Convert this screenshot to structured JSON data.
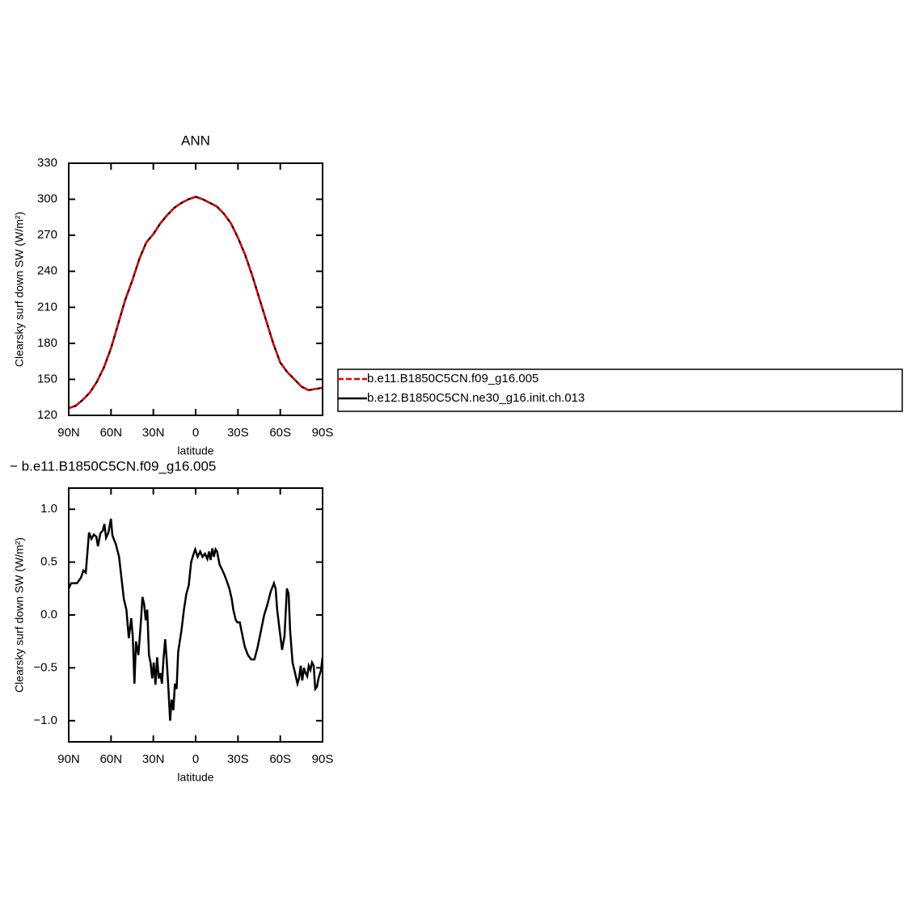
{
  "chart_data": [
    {
      "type": "line",
      "title": "ANN",
      "xlabel": "latitude",
      "ylabel": "Clearsky surf down SW (W/m²)",
      "x": [
        90,
        85,
        80,
        75,
        70,
        65,
        60,
        55,
        50,
        45,
        40,
        35,
        30,
        25,
        20,
        15,
        10,
        5,
        0,
        -5,
        -10,
        -15,
        -20,
        -25,
        -30,
        -35,
        -40,
        -45,
        -50,
        -55,
        -60,
        -65,
        -70,
        -75,
        -80,
        -85,
        -90
      ],
      "series": [
        {
          "name": "b.e12.B1850C5CN.ne30_g16.init.ch.013",
          "color": "#000000",
          "dash": false,
          "values": [
            126,
            128,
            133,
            139,
            148,
            160,
            176,
            196,
            216,
            232,
            250,
            264,
            271,
            280,
            287,
            293,
            297,
            300,
            302,
            300,
            297,
            294,
            288,
            280,
            268,
            254,
            237,
            218,
            199,
            180,
            164,
            156,
            150,
            144,
            141,
            142,
            143
          ]
        },
        {
          "name": "b.e11.B1850C5CN.f09_g16.005",
          "color": "#e00000",
          "dash": true,
          "values": [
            126,
            128,
            133,
            139,
            148,
            160,
            176,
            196,
            216,
            232,
            250,
            264,
            271,
            280,
            287,
            293,
            297,
            300,
            302,
            300,
            297,
            294,
            288,
            280,
            268,
            254,
            237,
            218,
            199,
            180,
            164,
            156,
            150,
            144,
            141,
            142,
            143
          ]
        }
      ],
      "xlim": [
        90,
        -90
      ],
      "xticks": [
        {
          "value": 90,
          "label": "90N"
        },
        {
          "value": 60,
          "label": "60N"
        },
        {
          "value": 30,
          "label": "30N"
        },
        0,
        {
          "value": -30,
          "label": "30S"
        },
        {
          "value": -60,
          "label": "60S"
        },
        {
          "value": -90,
          "label": "90S"
        }
      ],
      "ylim": [
        120,
        330
      ],
      "yticks": [
        120,
        150,
        180,
        210,
        240,
        270,
        300,
        330
      ],
      "legend_position": "right"
    },
    {
      "type": "line",
      "title": "−  b.e11.B1850C5CN.f09_g16.005",
      "xlabel": "latitude",
      "ylabel": "Clearsky surf down SW (W/m²)",
      "color": "#000000",
      "x": [
        90,
        88.3,
        84.2,
        81.4,
        79.6,
        77.9,
        75.6,
        73.9,
        72.2,
        70.4,
        69.3,
        67.6,
        65.8,
        64.7,
        63.5,
        61.8,
        60.1,
        59,
        56.6,
        54.3,
        52.6,
        50.9,
        49.1,
        47.4,
        45.7,
        44.6,
        43.4,
        42.3,
        40.6,
        38.9,
        37.7,
        36.5,
        35.4,
        34.3,
        33.1,
        32,
        30.8,
        29.7,
        28.5,
        27.3,
        26.2,
        25,
        23.9,
        22.7,
        21.6,
        20.4,
        19.3,
        18.1,
        17,
        15.8,
        14.7,
        13.5,
        12.4,
        10.1,
        8.3,
        6.6,
        4.9,
        3.2,
        1.4,
        0.3,
        -1.4,
        -3.2,
        -4.9,
        -6.6,
        -8.3,
        -9.5,
        -10.6,
        -11.8,
        -12.9,
        -14.1,
        -15.2,
        -16.9,
        -18.7,
        -20.4,
        -22.1,
        -23.9,
        -25.6,
        -26.7,
        -28.5,
        -29.6,
        -31.3,
        -32.5,
        -34.8,
        -37.1,
        -39.4,
        -41.7,
        -44,
        -46.3,
        -48.6,
        -50.9,
        -53.2,
        -55.5,
        -56.7,
        -57.8,
        -59.6,
        -61.3,
        -63,
        -64.7,
        -65.9,
        -67,
        -68.7,
        -70.5,
        -72.2,
        -73.3,
        -74.5,
        -75.6,
        -76.8,
        -77.9,
        -79.1,
        -80.2,
        -81.4,
        -82.5,
        -83.7,
        -84.8,
        -86,
        -87.1,
        -88.9,
        -90
      ],
      "values": [
        0.25,
        0.3,
        0.3,
        0.35,
        0.42,
        0.4,
        0.78,
        0.72,
        0.76,
        0.74,
        0.65,
        0.77,
        0.8,
        0.86,
        0.73,
        0.78,
        0.91,
        0.75,
        0.67,
        0.55,
        0.35,
        0.15,
        0.05,
        -0.22,
        -0.03,
        -0.2,
        -0.65,
        -0.25,
        -0.38,
        -0.08,
        0.17,
        0.1,
        -0.05,
        0.05,
        -0.38,
        -0.45,
        -0.6,
        -0.45,
        -0.66,
        -0.4,
        -0.6,
        -0.55,
        -0.65,
        -0.4,
        -0.23,
        -0.45,
        -0.7,
        -1.0,
        -0.8,
        -0.9,
        -0.65,
        -0.7,
        -0.35,
        -0.15,
        0.05,
        0.2,
        0.28,
        0.5,
        0.58,
        0.62,
        0.55,
        0.6,
        0.55,
        0.58,
        0.53,
        0.6,
        0.52,
        0.63,
        0.55,
        0.62,
        0.6,
        0.48,
        0.43,
        0.38,
        0.32,
        0.25,
        0.15,
        0.05,
        -0.05,
        -0.07,
        -0.07,
        -0.15,
        -0.3,
        -0.38,
        -0.42,
        -0.42,
        -0.3,
        -0.15,
        0.0,
        0.1,
        0.22,
        0.3,
        0.25,
        0.05,
        -0.15,
        -0.33,
        -0.2,
        0.25,
        0.2,
        -0.15,
        -0.45,
        -0.55,
        -0.65,
        -0.6,
        -0.48,
        -0.62,
        -0.5,
        -0.55,
        -0.58,
        -0.48,
        -0.52,
        -0.45,
        -0.48,
        -0.7,
        -0.68,
        -0.6,
        -0.52,
        -0.4
      ],
      "xlim": [
        90,
        -90
      ],
      "xticks": [
        {
          "value": 90,
          "label": "90N"
        },
        {
          "value": 60,
          "label": "60N"
        },
        {
          "value": 30,
          "label": "30N"
        },
        0,
        {
          "value": -30,
          "label": "30S"
        },
        {
          "value": -60,
          "label": "60S"
        },
        {
          "value": -90,
          "label": "90S"
        }
      ],
      "ylim": [
        -1.2,
        1.2
      ],
      "yticks": [
        {
          "value": -1,
          "label": "−1.0"
        },
        {
          "value": -0.5,
          "label": "−0.5"
        },
        {
          "value": 0,
          "label": "0.0"
        },
        {
          "value": 0.5,
          "label": "0.5"
        },
        {
          "value": 1,
          "label": "1.0"
        }
      ]
    }
  ]
}
